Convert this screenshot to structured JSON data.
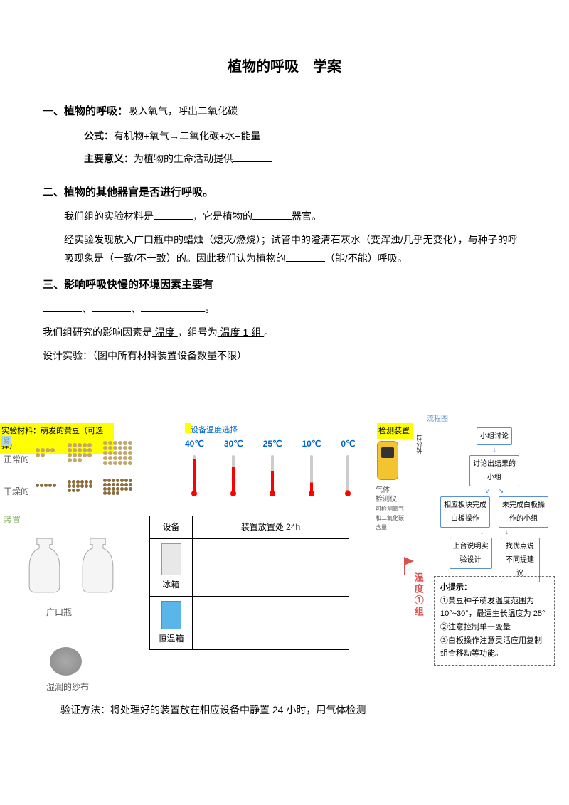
{
  "title": "植物的呼吸　学案",
  "s1": {
    "head": "一、植物的呼吸：",
    "text": "吸入氧气，呼出二氧化碳",
    "formula_label": "公式：",
    "formula": "有机物+氧气→二氧化碳+水+能量",
    "meaning_label": "主要意义：",
    "meaning": "为植物的生命活动提供"
  },
  "s2": {
    "head": "二、植物的其他器官是否进行呼吸。",
    "p1a": "我们组的实验材料是",
    "p1b": "，它是植物的",
    "p1c": "器官。",
    "p2": "经实验发现放入广口瓶中的蜡烛（熄灭/燃烧）；试管中的澄清石灰水（变浑浊/几乎无变化），与种子的呼吸现象是（一致/不一致）的。因此我们认为植物的",
    "p2b": "（能/不能）呼吸。"
  },
  "s3": {
    "head": "三、影响呼吸快慢的环境因素主要有",
    "p1a": "我们组研究的影响因素是",
    "p1a_u": " 温度 ",
    "p1b": "，组号为",
    "p1b_u": " 温度 1 组 ",
    "p1c": "。",
    "p2": "设计实验：（图中所有材料装置设备数量不限）"
  },
  "materials": {
    "label1": "实验材料：萌发的黄豆（可选择）",
    "label2": "设备温度选择",
    "label3": "检测装置",
    "normal": "正常的",
    "dry": "干燥的",
    "device": "装置",
    "jar": "广口瓶",
    "cloth": "湿润的纱布",
    "yi": "易"
  },
  "temps": [
    "40℃",
    "30℃",
    "25℃",
    "10℃",
    "0℃"
  ],
  "table": {
    "h1": "设备",
    "h2": "装置放置处 24h",
    "fridge": "冰箱",
    "oven": "恒温箱"
  },
  "detector": {
    "name": "气体\n检测仪",
    "desc": "可检测氧气\n和二氧化碳\n含量"
  },
  "flow": {
    "title": "流程图",
    "min": "12分钟",
    "n1": "小组讨论",
    "n2": "讨论出结果的小组",
    "n3a": "相应板块完成白板操作",
    "n3b": "未完成白板操作的小组",
    "n4a": "上台说明实验设计",
    "n4b": "找优点说不同提建议"
  },
  "red": "温度①组",
  "tip": {
    "title": "小提示：",
    "l1": "①黄豆种子萌发温度范围为 10°~30°，最适生长温度为 25°",
    "l2": "②注意控制单一变量",
    "l3": "③白板操作注意灵活应用复制组合移动等功能。"
  },
  "verify": "验证方法：将处理好的装置放在相应设备中静置 24 小时，用气体检测"
}
